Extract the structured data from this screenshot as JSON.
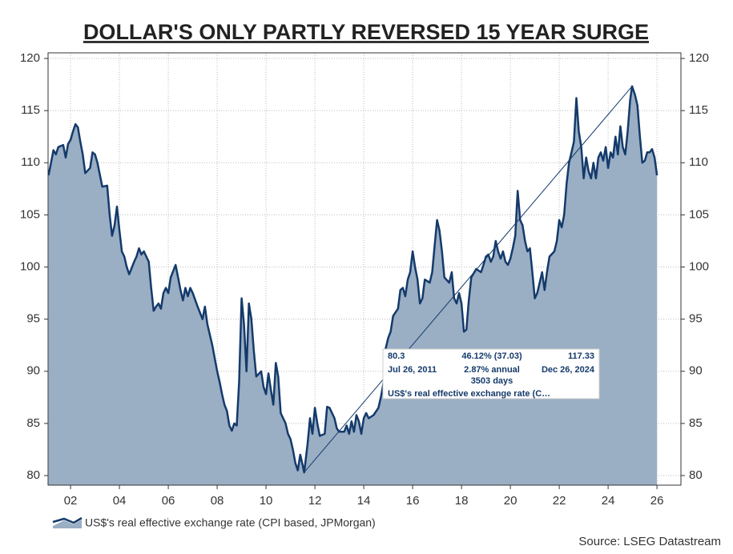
{
  "chart_data": {
    "type": "area",
    "title": "DOLLAR'S ONLY PARTLY REVERSED 15 YEAR SURGE",
    "source": "Source: LSEG Datastream",
    "x": [
      2001.1,
      2001.2,
      2001.3,
      2001.4,
      2001.5,
      2001.7,
      2001.8,
      2001.9,
      2002.0,
      2002.1,
      2002.2,
      2002.3,
      2002.4,
      2002.5,
      2002.6,
      2002.8,
      2002.9,
      2003.0,
      2003.1,
      2003.3,
      2003.5,
      2003.6,
      2003.7,
      2003.8,
      2003.9,
      2004.0,
      2004.1,
      2004.2,
      2004.3,
      2004.4,
      2004.6,
      2004.7,
      2004.8,
      2004.9,
      2005.0,
      2005.2,
      2005.3,
      2005.4,
      2005.5,
      2005.6,
      2005.7,
      2005.8,
      2005.9,
      2006.0,
      2006.1,
      2006.3,
      2006.4,
      2006.5,
      2006.6,
      2006.7,
      2006.8,
      2006.9,
      2007.0,
      2007.2,
      2007.4,
      2007.5,
      2007.6,
      2007.8,
      2008.0,
      2008.1,
      2008.2,
      2008.3,
      2008.4,
      2008.5,
      2008.6,
      2008.7,
      2008.8,
      2008.9,
      2009.0,
      2009.1,
      2009.2,
      2009.3,
      2009.4,
      2009.5,
      2009.6,
      2009.8,
      2009.9,
      2010.0,
      2010.1,
      2010.2,
      2010.3,
      2010.4,
      2010.5,
      2010.6,
      2010.8,
      2010.9,
      2011.0,
      2011.1,
      2011.2,
      2011.3,
      2011.4,
      2011.5,
      2011.56,
      2011.7,
      2011.8,
      2011.9,
      2012.0,
      2012.1,
      2012.2,
      2012.4,
      2012.5,
      2012.6,
      2012.8,
      2012.9,
      2013.0,
      2013.2,
      2013.3,
      2013.4,
      2013.5,
      2013.6,
      2013.7,
      2013.8,
      2013.9,
      2014.0,
      2014.1,
      2014.2,
      2014.4,
      2014.6,
      2014.7,
      2014.8,
      2014.9,
      2015.0,
      2015.1,
      2015.2,
      2015.4,
      2015.5,
      2015.6,
      2015.7,
      2015.8,
      2015.9,
      2016.0,
      2016.1,
      2016.2,
      2016.3,
      2016.4,
      2016.5,
      2016.7,
      2016.8,
      2016.9,
      2017.0,
      2017.1,
      2017.2,
      2017.3,
      2017.5,
      2017.6,
      2017.7,
      2017.8,
      2017.9,
      2018.0,
      2018.1,
      2018.2,
      2018.3,
      2018.4,
      2018.6,
      2018.8,
      2018.9,
      2019.0,
      2019.1,
      2019.2,
      2019.3,
      2019.4,
      2019.5,
      2019.6,
      2019.7,
      2019.8,
      2019.9,
      2020.0,
      2020.1,
      2020.2,
      2020.3,
      2020.4,
      2020.5,
      2020.6,
      2020.7,
      2020.8,
      2020.9,
      2021.0,
      2021.1,
      2021.2,
      2021.3,
      2021.4,
      2021.5,
      2021.6,
      2021.8,
      2021.9,
      2022.0,
      2022.1,
      2022.2,
      2022.3,
      2022.4,
      2022.5,
      2022.6,
      2022.7,
      2022.8,
      2022.9,
      2023.0,
      2023.1,
      2023.2,
      2023.3,
      2023.4,
      2023.5,
      2023.6,
      2023.7,
      2023.8,
      2023.9,
      2024.0,
      2024.1,
      2024.2,
      2024.3,
      2024.4,
      2024.5,
      2024.6,
      2024.7,
      2024.8,
      2024.9,
      2024.98,
      2025.1,
      2025.2,
      2025.3,
      2025.4,
      2025.5,
      2025.6,
      2025.7,
      2025.8,
      2025.9,
      2026.0
    ],
    "series": [
      {
        "name": "US$'s real effective exchange rate (CPI based, JPMorgan)",
        "color": "#143a6b",
        "fill": "#9aaec4",
        "values": [
          108.8,
          110,
          111.2,
          110.8,
          111.5,
          111.7,
          110.5,
          111.8,
          112.2,
          113,
          113.7,
          113.4,
          112,
          110.8,
          109,
          109.5,
          111,
          110.8,
          110,
          107.7,
          107.8,
          105,
          103,
          104,
          105.8,
          103.5,
          101.5,
          101,
          100,
          99.3,
          100.5,
          101,
          101.8,
          101.2,
          101.5,
          100.5,
          98,
          95.8,
          96.2,
          96.5,
          96,
          97.5,
          98,
          97.5,
          99,
          100.2,
          99,
          97.8,
          96.8,
          98,
          97.2,
          98,
          97.5,
          96.2,
          95,
          96.2,
          94.5,
          92.5,
          90,
          89,
          87.8,
          86.8,
          86.2,
          84.8,
          84.3,
          85,
          84.8,
          89,
          97,
          94.5,
          90,
          96.5,
          95,
          92,
          89.5,
          90,
          88.5,
          87.8,
          89.8,
          88.2,
          86.8,
          90.8,
          89.5,
          86,
          85,
          84,
          83.5,
          82.5,
          81.2,
          80.5,
          82,
          81,
          80.3,
          83,
          85.5,
          84,
          86.5,
          85,
          83.8,
          84,
          86.6,
          86.5,
          85.5,
          84.5,
          84.2,
          84.2,
          84.8,
          84,
          85.2,
          84.2,
          85.8,
          85.2,
          84,
          85.5,
          86,
          85.5,
          85.8,
          86.5,
          87.5,
          88.8,
          92.2,
          93.2,
          93.8,
          95.3,
          96,
          97.8,
          98,
          97.2,
          98.8,
          99.5,
          101.5,
          100,
          98.8,
          96.5,
          97,
          98.8,
          98.5,
          99.5,
          102,
          104.5,
          103.5,
          101.5,
          99,
          98.5,
          99.5,
          97,
          96.5,
          97.5,
          96.5,
          93.8,
          94,
          96.8,
          99,
          99.8,
          99.5,
          100.2,
          101,
          101.2,
          100.5,
          101,
          102.5,
          101.5,
          100.8,
          101.5,
          100.5,
          100.2,
          100.8,
          101.8,
          103,
          107.3,
          104.5,
          104,
          102.5,
          101.5,
          101.8,
          99.5,
          97,
          97.5,
          98.5,
          99.5,
          97.8,
          99.5,
          101,
          101.5,
          102.5,
          104.5,
          103.8,
          105,
          108,
          110,
          111,
          112,
          116.2,
          113,
          111.5,
          108.5,
          110.5,
          109.2,
          108.5,
          110,
          108.5,
          110.5,
          111,
          110.2,
          111.5,
          109.5,
          111,
          110.5,
          112.5,
          110.8,
          113.5,
          111.5,
          110.8,
          113,
          116,
          117.33,
          116.5,
          115.5,
          112.5,
          110,
          110.2,
          111,
          111,
          111.3,
          110.5,
          108.8
        ]
      }
    ],
    "trend_line": {
      "x": [
        2011.56,
        2024.98
      ],
      "values": [
        80.3,
        117.33
      ],
      "color": "#143a6b"
    },
    "annotation_box": {
      "start_value": "80.3",
      "change": "46.12% (37.03)",
      "end_value": "117.33",
      "start_date": "Jul 26, 2011",
      "annual": "2.87% annual",
      "end_date": "Dec 26, 2024",
      "days": "3503 days",
      "series_label": "US$'s real effective exchange rate (C…"
    },
    "xlim": [
      2001.08,
      2026.98
    ],
    "xticks": [
      {
        "value": 2002,
        "label": "02"
      },
      {
        "value": 2004,
        "label": "04"
      },
      {
        "value": 2006,
        "label": "06"
      },
      {
        "value": 2008,
        "label": "08"
      },
      {
        "value": 2010,
        "label": "10"
      },
      {
        "value": 2012,
        "label": "12"
      },
      {
        "value": 2014,
        "label": "14"
      },
      {
        "value": 2016,
        "label": "16"
      },
      {
        "value": 2018,
        "label": "18"
      },
      {
        "value": 2020,
        "label": "20"
      },
      {
        "value": 2022,
        "label": "22"
      },
      {
        "value": 2024,
        "label": "24"
      },
      {
        "value": 2026,
        "label": "26"
      }
    ],
    "ylim": [
      79.08,
      120.54
    ],
    "yticks": [
      80,
      85,
      90,
      95,
      100,
      105,
      110,
      115,
      120
    ],
    "grid": true
  }
}
